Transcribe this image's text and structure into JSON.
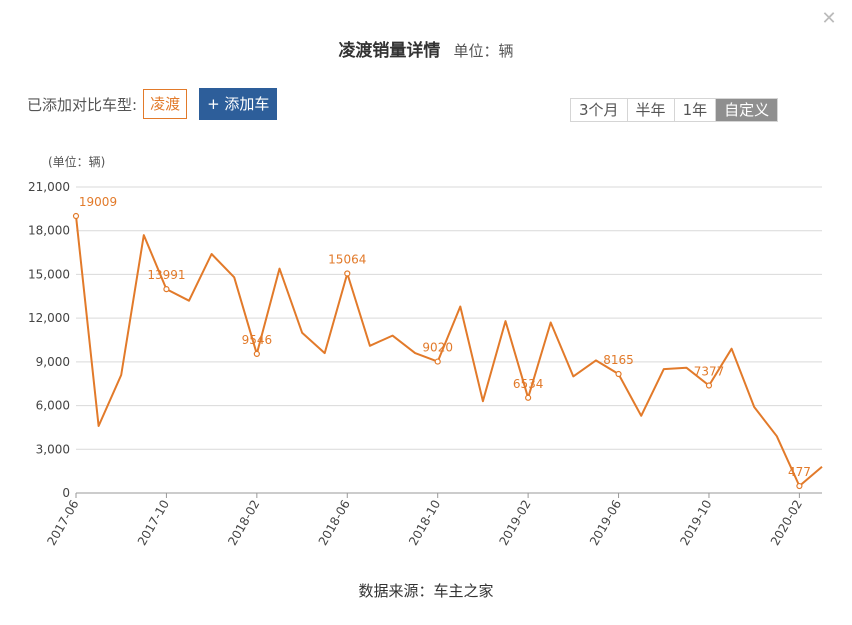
{
  "header": {
    "title": "凌渡销量详情",
    "unit": "单位：辆",
    "close_icon": "close-icon"
  },
  "compare": {
    "label": "已添加对比车型:",
    "model": "凌渡",
    "add_button": "+ 添加车"
  },
  "ranges": [
    {
      "label": "3个月",
      "active": false
    },
    {
      "label": "半年",
      "active": false
    },
    {
      "label": "1年",
      "active": false
    },
    {
      "label": "自定义",
      "active": true
    }
  ],
  "source": "数据来源：车主之家",
  "chart_data": {
    "type": "line",
    "ylabel": "(单位：辆)",
    "ylim": [
      0,
      21000
    ],
    "yticks": [
      "0",
      "3,000",
      "6,000",
      "9,000",
      "12,000",
      "15,000",
      "18,000",
      "21,000"
    ],
    "xticks": [
      "2017-06",
      "2017-10",
      "2018-02",
      "2018-06",
      "2018-10",
      "2019-02",
      "2019-06",
      "2019-10",
      "2020-02"
    ],
    "grid": true,
    "line_color": "#e27a2a",
    "series": [
      {
        "x": [
          "2017-06",
          "2017-07",
          "2017-08",
          "2017-09",
          "2017-10",
          "2017-11",
          "2017-12",
          "2018-01",
          "2018-02",
          "2018-03",
          "2018-04",
          "2018-05",
          "2018-06",
          "2018-07",
          "2018-08",
          "2018-09",
          "2018-10",
          "2018-11",
          "2018-12",
          "2019-01",
          "2019-02",
          "2019-03",
          "2019-04",
          "2019-05",
          "2019-06",
          "2019-07",
          "2019-08",
          "2019-09",
          "2019-10",
          "2019-11",
          "2019-12",
          "2020-01",
          "2020-02",
          "2020-03"
        ],
        "values": [
          19009,
          4600,
          8100,
          17700,
          13991,
          13200,
          16400,
          14800,
          9546,
          15400,
          11000,
          9600,
          15064,
          10100,
          10800,
          9600,
          9020,
          12800,
          6300,
          11800,
          6534,
          11700,
          8000,
          9100,
          8165,
          5300,
          8500,
          8600,
          7377,
          9900,
          5900,
          3900,
          477,
          1800
        ],
        "labels": {
          "0": "19009",
          "4": "13991",
          "8": "9546",
          "12": "15064",
          "16": "9020",
          "20": "6534",
          "24": "8165",
          "28": "7377",
          "32": "477"
        }
      }
    ]
  }
}
